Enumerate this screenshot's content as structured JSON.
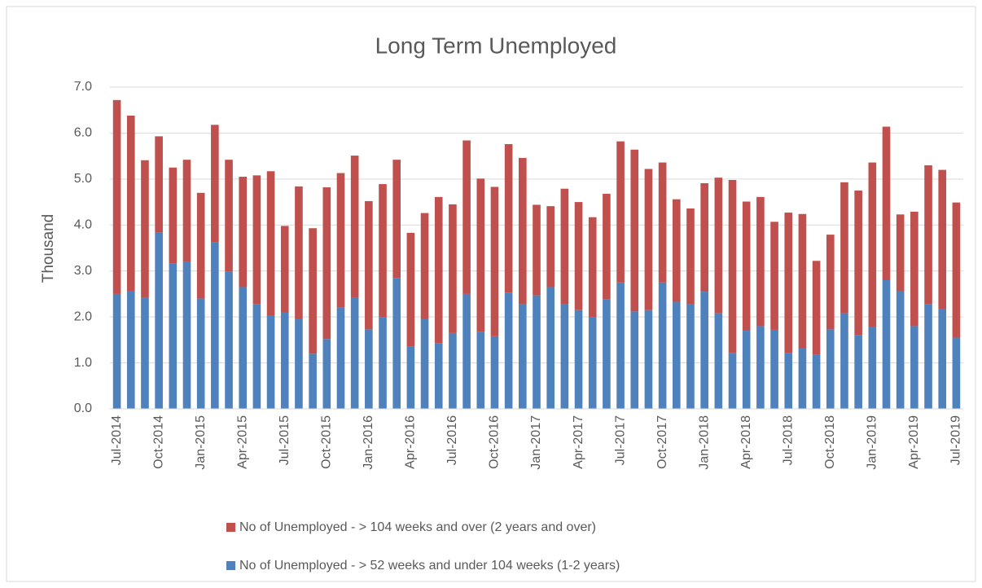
{
  "chart_data": {
    "type": "stacked_bar",
    "title": "Long Term Unemployed",
    "y_label": "Thousand",
    "categories": [
      "Jul-2014",
      null,
      null,
      "Oct-2014",
      null,
      null,
      "Jan-2015",
      null,
      null,
      "Apr-2015",
      null,
      null,
      "Jul-2015",
      null,
      null,
      "Oct-2015",
      null,
      null,
      "Jan-2016",
      null,
      null,
      "Apr-2016",
      null,
      null,
      "Jul-2016",
      null,
      null,
      "Oct-2016",
      null,
      null,
      "Jan-2017",
      null,
      null,
      "Apr-2017",
      null,
      null,
      "Jul-2017",
      null,
      null,
      "Oct-2017",
      null,
      null,
      "Jan-2018",
      null,
      null,
      "Apr-2018",
      null,
      null,
      "Jul-2018",
      null,
      null,
      "Oct-2018",
      null,
      null,
      "Jan-2019",
      null,
      null,
      "Apr-2019",
      null,
      null,
      "Jul-2019"
    ],
    "series": [
      {
        "name": "No of Unemployed - > 52 weeks and under 104 weeks (1-2 years)",
        "color": "#4f81bd",
        "values": [
          2.5,
          2.57,
          2.42,
          3.83,
          3.17,
          3.2,
          2.4,
          3.62,
          2.98,
          2.65,
          2.28,
          2.03,
          2.1,
          1.95,
          1.2,
          1.52,
          2.2,
          2.42,
          1.73,
          2.0,
          2.85,
          1.35,
          1.95,
          1.43,
          1.65,
          2.5,
          1.67,
          1.58,
          2.53,
          2.27,
          2.47,
          2.65,
          2.27,
          2.15,
          2.0,
          2.38,
          2.75,
          2.12,
          2.15,
          2.75,
          2.33,
          2.27,
          2.55,
          2.08,
          1.22,
          1.7,
          1.8,
          1.72,
          1.22,
          1.32,
          1.18,
          1.73,
          2.08,
          1.6,
          1.78,
          2.8,
          2.57,
          1.8,
          2.28,
          2.17,
          1.55
        ]
      },
      {
        "name": "No of Unemployed - > 104 weeks and over (2 years and over)",
        "color": "#c0504d",
        "values": [
          4.22,
          3.81,
          2.99,
          2.1,
          2.08,
          2.22,
          2.3,
          2.56,
          2.44,
          2.4,
          2.8,
          3.14,
          1.88,
          2.89,
          2.73,
          3.3,
          2.93,
          3.09,
          2.79,
          2.89,
          2.57,
          2.48,
          2.31,
          3.18,
          2.8,
          3.34,
          3.34,
          3.25,
          3.23,
          3.19,
          1.97,
          1.76,
          2.52,
          2.35,
          2.17,
          2.3,
          3.07,
          3.52,
          3.07,
          2.61,
          2.23,
          2.09,
          2.36,
          2.95,
          3.76,
          2.81,
          2.81,
          2.35,
          3.05,
          2.92,
          2.04,
          2.06,
          2.85,
          3.15,
          3.58,
          3.34,
          1.66,
          2.49,
          3.02,
          3.03,
          2.94
        ]
      }
    ],
    "ylim": [
      0,
      7
    ],
    "yticks": [
      {
        "value": 0,
        "label": "0.0"
      },
      {
        "value": 1,
        "label": "1.0"
      },
      {
        "value": 2,
        "label": "2.0"
      },
      {
        "value": 3,
        "label": "3.0"
      },
      {
        "value": 4,
        "label": "4.0"
      },
      {
        "value": 5,
        "label": "5.0"
      },
      {
        "value": 6,
        "label": "6.0"
      },
      {
        "value": 7,
        "label": "7.0"
      }
    ],
    "grid": true,
    "legend": "bottom"
  }
}
